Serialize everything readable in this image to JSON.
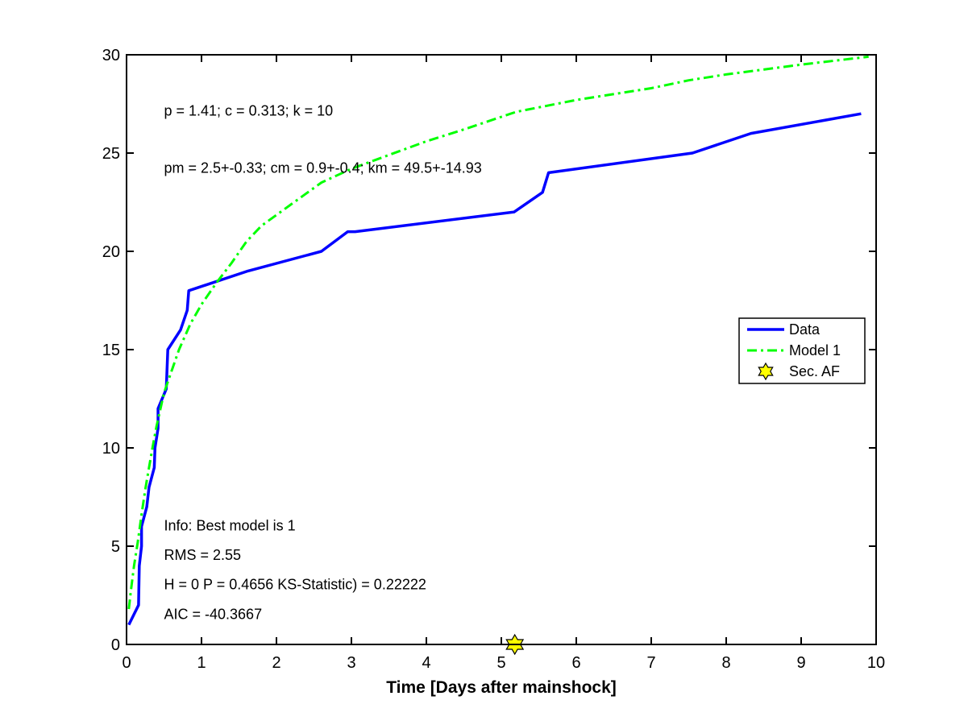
{
  "chart_data": {
    "type": "line",
    "xlabel": "Time [Days after mainshock]",
    "ylabel": "",
    "xlim": [
      0,
      10
    ],
    "ylim": [
      0,
      30
    ],
    "xticks": [
      0,
      1,
      2,
      3,
      4,
      5,
      6,
      7,
      8,
      9,
      10
    ],
    "yticks": [
      0,
      5,
      10,
      15,
      20,
      25,
      30
    ],
    "grid": false,
    "legend_position": "right",
    "series": [
      {
        "name": "Data",
        "style": "solid",
        "color": "#0000ff",
        "points": [
          [
            0.03,
            1
          ],
          [
            0.16,
            2
          ],
          [
            0.17,
            4
          ],
          [
            0.2,
            5
          ],
          [
            0.2,
            6
          ],
          [
            0.27,
            7
          ],
          [
            0.3,
            8
          ],
          [
            0.37,
            9
          ],
          [
            0.38,
            10
          ],
          [
            0.42,
            11
          ],
          [
            0.42,
            12
          ],
          [
            0.53,
            13
          ],
          [
            0.55,
            15
          ],
          [
            0.72,
            16
          ],
          [
            0.81,
            17
          ],
          [
            0.83,
            18
          ],
          [
            1.62,
            19
          ],
          [
            2.6,
            20
          ],
          [
            2.95,
            21
          ],
          [
            3.05,
            21
          ],
          [
            5.17,
            22
          ],
          [
            5.55,
            23
          ],
          [
            5.63,
            24
          ],
          [
            7.55,
            25
          ],
          [
            8.33,
            26
          ],
          [
            9.8,
            27
          ]
        ]
      },
      {
        "name": "Model 1",
        "style": "dash-dot",
        "color": "#00ff00",
        "points": [
          [
            0.03,
            1.8
          ],
          [
            0.06,
            2.8
          ],
          [
            0.1,
            4.0
          ],
          [
            0.15,
            5.2
          ],
          [
            0.2,
            6.6
          ],
          [
            0.25,
            7.9
          ],
          [
            0.3,
            9.0
          ],
          [
            0.35,
            10.1
          ],
          [
            0.4,
            11.1
          ],
          [
            0.5,
            12.8
          ],
          [
            0.6,
            13.9
          ],
          [
            0.7,
            15.0
          ],
          [
            0.85,
            16.3
          ],
          [
            1.0,
            17.3
          ],
          [
            1.2,
            18.4
          ],
          [
            1.4,
            19.4
          ],
          [
            1.6,
            20.5
          ],
          [
            1.8,
            21.3
          ],
          [
            2.2,
            22.4
          ],
          [
            2.6,
            23.5
          ],
          [
            3.0,
            24.2
          ],
          [
            3.5,
            24.9
          ],
          [
            4.0,
            25.6
          ],
          [
            4.5,
            26.2
          ],
          [
            5.2,
            27.1
          ],
          [
            6.0,
            27.7
          ],
          [
            7.0,
            28.3
          ],
          [
            7.5,
            28.7
          ],
          [
            8.0,
            29.0
          ],
          [
            9.0,
            29.5
          ],
          [
            9.9,
            29.9
          ]
        ]
      }
    ],
    "markers": [
      {
        "name": "Sec. AF",
        "shape": "hexagram",
        "color": "#ffff00",
        "edge": "#000000",
        "x": 5.18,
        "y": 0
      }
    ],
    "annotations": [
      {
        "text": "p = 1.41; c = 0.313; k = 10",
        "x": 0.5,
        "y": 26.9
      },
      {
        "text": "pm = 2.5+-0.33; cm = 0.9+-0.4; km = 49.5+-14.93",
        "x": 0.5,
        "y": 24.0
      },
      {
        "text": "Info: Best model is 1",
        "x": 0.5,
        "y": 5.8
      },
      {
        "text": "RMS = 2.55",
        "x": 0.5,
        "y": 4.3
      },
      {
        "text": "H = 0 P = 0.4656 KS-Statistic) = 0.22222",
        "x": 0.5,
        "y": 2.8
      },
      {
        "text": "AIC = -40.3667",
        "x": 0.5,
        "y": 1.3
      }
    ]
  }
}
